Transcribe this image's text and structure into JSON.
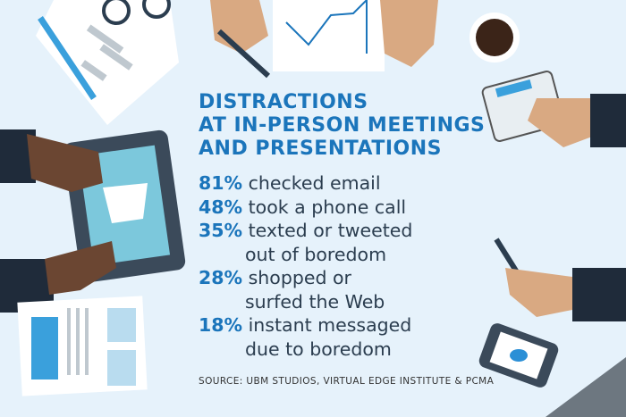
{
  "title_lines": [
    "DISTRACTIONS",
    "AT IN-PERSON MEETINGS",
    "AND PRESENTATIONS"
  ],
  "stats": [
    {
      "percent": "81%",
      "lines": [
        "checked email"
      ]
    },
    {
      "percent": "48%",
      "lines": [
        "took a phone call"
      ]
    },
    {
      "percent": "35%",
      "lines": [
        "texted or tweeted",
        "out of boredom"
      ]
    },
    {
      "percent": "28%",
      "lines": [
        "shopped or",
        "surfed the Web"
      ]
    },
    {
      "percent": "18%",
      "lines": [
        "instant messaged",
        "due to boredom"
      ]
    }
  ],
  "source": "SOURCE: UBM STUDIOS, VIRTUAL EDGE INSTITUTE & PCMA",
  "colors": {
    "background": "#e6f2fb",
    "accent": "#1b75bb",
    "text": "#2b3d4f",
    "sleeve": "#1f2b3a"
  },
  "icons": [
    "document-with-flowchart",
    "glasses",
    "pencil",
    "hand-with-pen",
    "line-chart-paper",
    "coffee-cup",
    "calculator",
    "tablet-with-shopping-cart",
    "newspaper",
    "hand-with-fountain-pen",
    "smartphone-with-twitter-bird",
    "keyboard"
  ]
}
